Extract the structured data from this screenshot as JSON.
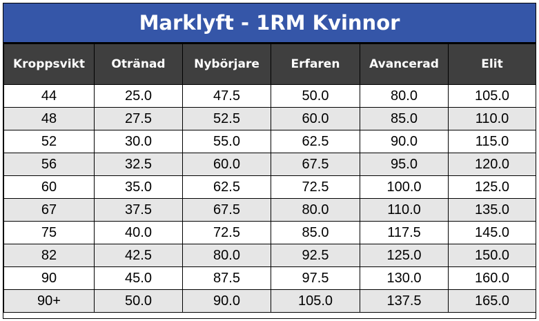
{
  "title": "Marklyft - 1RM Kvinnor",
  "colors": {
    "title_background": "#3556a8",
    "header_background": "#3f3f3f",
    "alt_row_background": "#e6e6e6"
  },
  "table": {
    "headers": [
      "Kroppsvikt",
      "Otränad",
      "Nybörjare",
      "Erfaren",
      "Avancerad",
      "Elit"
    ],
    "rows": [
      [
        "44",
        "25.0",
        "47.5",
        "50.0",
        "80.0",
        "105.0"
      ],
      [
        "48",
        "27.5",
        "52.5",
        "60.0",
        "85.0",
        "110.0"
      ],
      [
        "52",
        "30.0",
        "55.0",
        "62.5",
        "90.0",
        "115.0"
      ],
      [
        "56",
        "32.5",
        "60.0",
        "67.5",
        "95.0",
        "120.0"
      ],
      [
        "60",
        "35.0",
        "62.5",
        "72.5",
        "100.0",
        "125.0"
      ],
      [
        "67",
        "37.5",
        "67.5",
        "80.0",
        "110.0",
        "135.0"
      ],
      [
        "75",
        "40.0",
        "72.5",
        "85.0",
        "117.5",
        "145.0"
      ],
      [
        "82",
        "42.5",
        "80.0",
        "92.5",
        "125.0",
        "150.0"
      ],
      [
        "90",
        "45.0",
        "87.5",
        "97.5",
        "130.0",
        "160.0"
      ],
      [
        "90+",
        "50.0",
        "90.0",
        "105.0",
        "137.5",
        "165.0"
      ]
    ]
  }
}
